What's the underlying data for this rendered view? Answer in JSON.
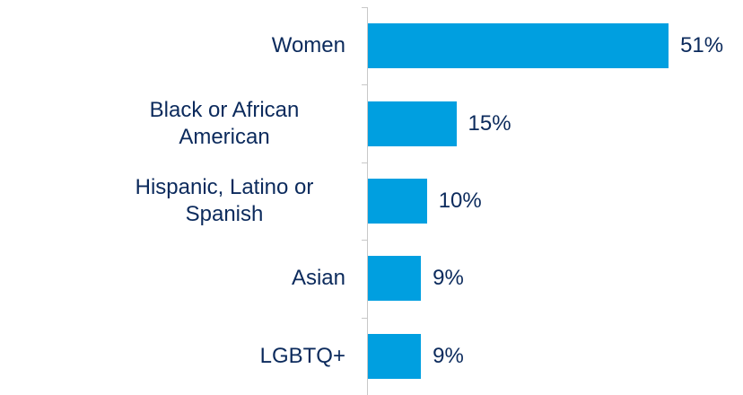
{
  "chart_data": {
    "type": "bar",
    "orientation": "horizontal",
    "categories": [
      "Women",
      "Black or African American",
      "Hispanic, Latino or Spanish",
      "Asian",
      "LGBTQ+"
    ],
    "values": [
      51,
      15,
      10,
      9,
      9
    ],
    "value_labels": [
      "51%",
      "15%",
      "10%",
      "9%",
      "9%"
    ],
    "color": "#009fe0"
  }
}
